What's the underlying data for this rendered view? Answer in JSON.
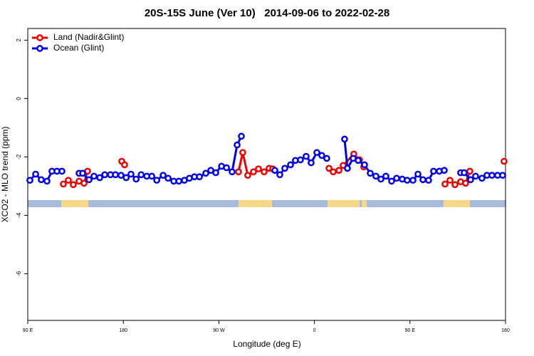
{
  "chart_data": {
    "type": "line",
    "title": "20S-15S June (Ver 10)   2014-09-06 to 2022-02-28",
    "xlabel": "Longitude (deg E)",
    "ylabel": "XCO2 - MLO trend (ppm)",
    "xlim": [
      90,
      540
    ],
    "ylim": [
      -7.6,
      2.4
    ],
    "xticks": [
      {
        "value": 90,
        "label": "90 E"
      },
      180,
      {
        "value": 270,
        "label": "90 W"
      },
      {
        "value": 360,
        "label": "0"
      },
      {
        "value": 450,
        "label": "90 E"
      },
      {
        "value": 540,
        "label": "180"
      }
    ],
    "yticks": [
      2,
      0,
      -2,
      -4,
      -6
    ],
    "legend": "topleft",
    "series": [
      {
        "name": "Land (Nadir&Glint)",
        "color": "#ee0000",
        "x": [
          123.5,
          128.2,
          132.9,
          138.3,
          143.0,
          146.3,
          null,
          178.5,
          181.2,
          null,
          288.5,
          292.5,
          297.2,
          302.6,
          307.3,
          312.6,
          317.3,
          320.7,
          null,
          373.7,
          377.7,
          383.1,
          387.1,
          397.1,
          402.5,
          406.5,
          null,
          483.0,
          487.7,
          492.4,
          497.7,
          502.4,
          506.4,
          null,
          538.6
        ],
        "values": [
          -2.93,
          -2.8,
          -2.95,
          -2.83,
          -2.9,
          -2.49,
          null,
          -2.15,
          -2.27,
          null,
          -2.51,
          -1.85,
          -2.63,
          -2.51,
          -2.41,
          -2.51,
          -2.39,
          -2.41,
          null,
          -2.39,
          -2.51,
          -2.46,
          -2.29,
          -1.9,
          -2.1,
          -2.34,
          null,
          -2.93,
          -2.8,
          -2.95,
          -2.85,
          -2.9,
          -2.49,
          null,
          -2.15
        ]
      },
      {
        "name": "Ocean (Glint)",
        "color": "#0000ee",
        "x": [
          92.0,
          97.4,
          102.7,
          108.1,
          112.8,
          117.5,
          122.2,
          null,
          138.3,
          141.7,
          147.7,
          152.4,
          157.8,
          162.5,
          167.9,
          172.6,
          177.8,
          182.7,
          187.2,
          192.1,
          196.8,
          202.1,
          206.8,
          211.5,
          217.5,
          222.2,
          227.5,
          232.3,
          237.5,
          242.2,
          247.0,
          251.7,
          257.7,
          262.4,
          267.1,
          272.5,
          277.2,
          282.5,
          287.2,
          291.2,
          null,
          322.7,
          327.4,
          332.1,
          337.5,
          342.1,
          346.8,
          352.2,
          356.9,
          362.3,
          366.9,
          371.6,
          null,
          388.4,
          391.1,
          396.5,
          401.2,
          407.2,
          412.6,
          417.9,
          422.6,
          427.3,
          432.7,
          437.4,
          442.7,
          447.4,
          452.8,
          457.5,
          462.2,
          467.5,
          472.2,
          477.6,
          482.3,
          null,
          497.7,
          501.1,
          507.1,
          511.8,
          517.8,
          522.5,
          527.2,
          532.5,
          537.3
        ],
        "values": [
          -2.8,
          -2.59,
          -2.78,
          -2.83,
          -2.49,
          -2.49,
          -2.49,
          null,
          -2.56,
          -2.56,
          -2.78,
          -2.66,
          -2.71,
          -2.61,
          -2.61,
          -2.61,
          -2.63,
          -2.71,
          -2.59,
          -2.76,
          -2.61,
          -2.66,
          -2.66,
          -2.8,
          -2.63,
          -2.73,
          -2.83,
          -2.83,
          -2.8,
          -2.73,
          -2.68,
          -2.68,
          -2.56,
          -2.46,
          -2.54,
          -2.32,
          -2.37,
          -2.51,
          -1.59,
          -1.29,
          null,
          -2.46,
          -2.61,
          -2.39,
          -2.27,
          -2.12,
          -2.1,
          -1.98,
          -2.2,
          -1.85,
          -1.95,
          -2.05,
          null,
          -1.39,
          -2.39,
          -2.05,
          -2.12,
          -2.27,
          -2.56,
          -2.66,
          -2.76,
          -2.66,
          -2.83,
          -2.73,
          -2.76,
          -2.8,
          -2.8,
          -2.59,
          -2.78,
          -2.8,
          -2.49,
          -2.49,
          -2.46,
          null,
          -2.54,
          -2.54,
          -2.78,
          -2.66,
          -2.73,
          -2.63,
          -2.63,
          -2.63,
          -2.63
        ]
      }
    ]
  }
}
